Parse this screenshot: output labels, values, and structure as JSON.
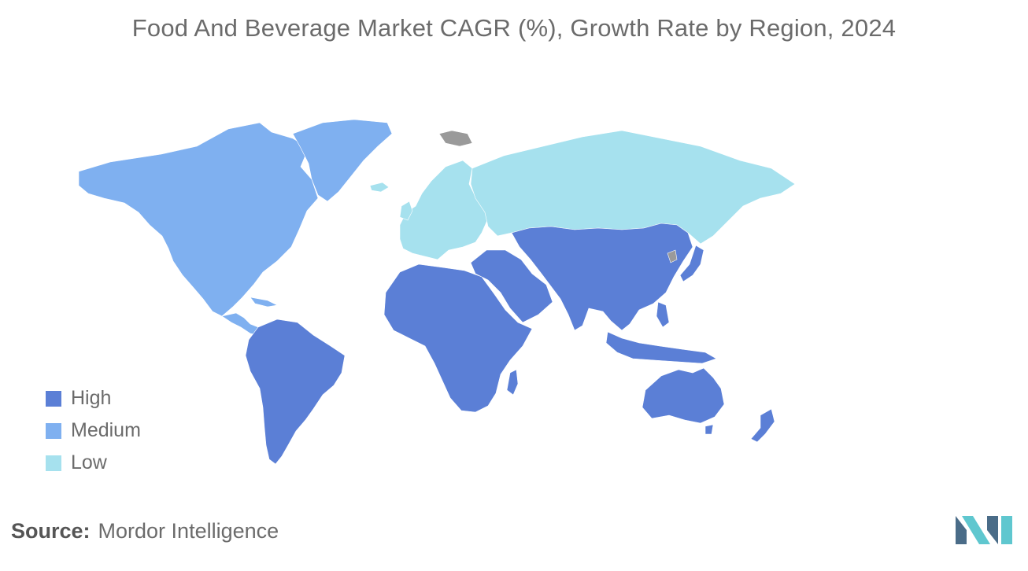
{
  "title": "Food And Beverage Market CAGR (%), Growth Rate by Region, 2024",
  "map_type": "world choropleth",
  "colors": {
    "high": "#5b7fd6",
    "medium": "#7fb0f0",
    "low": "#a6e1ee",
    "no_data": "#9a9a9a",
    "logo_dark": "#4a6c88",
    "logo_light": "#5fc7cf"
  },
  "legend": [
    {
      "label": "High",
      "color": "#5b7fd6"
    },
    {
      "label": "Medium",
      "color": "#7fb0f0"
    },
    {
      "label": "Low",
      "color": "#a6e1ee"
    }
  ],
  "regions": [
    {
      "name": "North America",
      "level": "Medium"
    },
    {
      "name": "Greenland",
      "level": "Medium"
    },
    {
      "name": "South America",
      "level": "High"
    },
    {
      "name": "Europe",
      "level": "Low"
    },
    {
      "name": "Russia",
      "level": "Low"
    },
    {
      "name": "Africa",
      "level": "High"
    },
    {
      "name": "Middle East",
      "level": "High"
    },
    {
      "name": "Asia",
      "level": "High"
    },
    {
      "name": "Australia and New Zealand",
      "level": "High"
    }
  ],
  "source": {
    "label": "Source:",
    "value": "Mordor Intelligence"
  },
  "logo": {
    "icon": "mordor-intelligence-logo-icon"
  }
}
